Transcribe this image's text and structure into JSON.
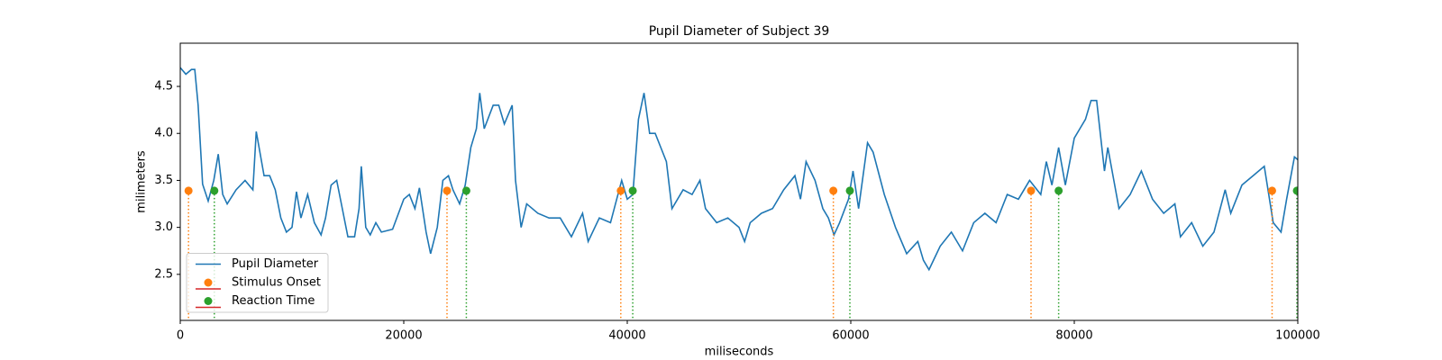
{
  "chart_data": {
    "type": "line",
    "title": "Pupil Diameter of Subject 39",
    "xlabel": "miliseconds",
    "ylabel": "milimeters",
    "xlim": [
      0,
      100000
    ],
    "ylim": [
      2.01,
      4.96
    ],
    "xticks": [
      0,
      20000,
      40000,
      60000,
      80000,
      100000
    ],
    "yticks": [
      2.5,
      {
        "value": 3,
        "label": "3.0"
      },
      3.5,
      {
        "value": 4,
        "label": "4.0"
      },
      4.5
    ],
    "legend": "lower left",
    "series": [
      {
        "name": "Pupil Diameter",
        "color": "#1f77b4",
        "kind": "line",
        "x": [
          0,
          500,
          1000,
          1300,
          1600,
          2000,
          2500,
          3000,
          3400,
          3800,
          4200,
          5000,
          5800,
          6500,
          6800,
          7500,
          8000,
          8500,
          9000,
          9500,
          10000,
          10400,
          10800,
          11400,
          12000,
          12600,
          13000,
          13500,
          14000,
          14500,
          15000,
          15600,
          16000,
          16200,
          16600,
          17000,
          17500,
          18000,
          19000,
          20000,
          20500,
          21000,
          21400,
          22000,
          22400,
          23000,
          23500,
          24000,
          24400,
          25000,
          25500,
          26000,
          26500,
          26800,
          27200,
          28000,
          28500,
          29000,
          29700,
          30000,
          30500,
          31000,
          32000,
          33000,
          34000,
          35000,
          36000,
          36500,
          37500,
          38500,
          39500,
          40000,
          40500,
          41000,
          41500,
          42000,
          42500,
          43000,
          43500,
          44000,
          45000,
          45800,
          46500,
          47000,
          48000,
          49000,
          50000,
          50500,
          51000,
          52000,
          53000,
          54000,
          55000,
          55500,
          56000,
          56800,
          57500,
          58000,
          58500,
          59000,
          59800,
          60200,
          60700,
          61500,
          62000,
          63000,
          64000,
          65000,
          66000,
          66500,
          67000,
          68000,
          69000,
          70000,
          71000,
          72000,
          73000,
          74000,
          75000,
          76000,
          77000,
          77500,
          78000,
          78600,
          79200,
          80000,
          80500,
          81000,
          81500,
          82000,
          82700,
          83000,
          84000,
          85000,
          86000,
          87000,
          88000,
          89000,
          89500,
          90500,
          91500,
          92500,
          93500,
          94000,
          95000,
          96000,
          97000,
          97800,
          98500,
          99000,
          99700,
          100000
        ],
        "values": [
          4.7,
          4.63,
          4.68,
          4.68,
          4.3,
          3.46,
          3.28,
          3.5,
          3.78,
          3.35,
          3.25,
          3.4,
          3.5,
          3.4,
          4.02,
          3.55,
          3.55,
          3.4,
          3.1,
          2.95,
          3.0,
          3.38,
          3.1,
          3.35,
          3.05,
          2.92,
          3.1,
          3.45,
          3.5,
          3.2,
          2.9,
          2.9,
          3.2,
          3.65,
          3.0,
          2.92,
          3.05,
          2.95,
          2.98,
          3.3,
          3.35,
          3.2,
          3.42,
          2.95,
          2.72,
          3.0,
          3.5,
          3.55,
          3.4,
          3.25,
          3.45,
          3.85,
          4.05,
          4.43,
          4.05,
          4.3,
          4.3,
          4.1,
          4.3,
          3.5,
          3.0,
          3.25,
          3.15,
          3.1,
          3.1,
          2.9,
          3.15,
          2.85,
          3.1,
          3.05,
          3.5,
          3.3,
          3.35,
          4.15,
          4.43,
          4.0,
          4.0,
          3.85,
          3.7,
          3.2,
          3.4,
          3.35,
          3.5,
          3.2,
          3.05,
          3.1,
          3.0,
          2.85,
          3.05,
          3.15,
          3.2,
          3.4,
          3.55,
          3.3,
          3.7,
          3.5,
          3.2,
          3.1,
          2.92,
          3.05,
          3.3,
          3.6,
          3.2,
          3.9,
          3.8,
          3.35,
          3.0,
          2.72,
          2.85,
          2.65,
          2.55,
          2.8,
          2.95,
          2.75,
          3.05,
          3.15,
          3.05,
          3.35,
          3.3,
          3.5,
          3.35,
          3.7,
          3.45,
          3.85,
          3.45,
          3.95,
          4.05,
          4.15,
          4.35,
          4.35,
          3.6,
          3.85,
          3.2,
          3.35,
          3.6,
          3.3,
          3.15,
          3.25,
          2.9,
          3.05,
          2.8,
          2.95,
          3.4,
          3.15,
          3.45,
          3.55,
          3.65,
          3.05,
          2.95,
          3.3,
          3.75,
          3.72
        ]
      },
      {
        "name": "Stimulus Onset",
        "color": "#ff7f0e",
        "kind": "stem",
        "x": [
          740,
          23870,
          39420,
          58440,
          76130,
          97700
        ],
        "values": [
          3.39,
          3.39,
          3.39,
          3.39,
          3.39,
          3.39
        ]
      },
      {
        "name": "Reaction Time",
        "color": "#2ca02c",
        "kind": "stem",
        "x": [
          3050,
          25600,
          40490,
          59920,
          78600,
          99920
        ],
        "values": [
          3.39,
          3.39,
          3.39,
          3.39,
          3.39,
          3.39
        ]
      }
    ]
  }
}
